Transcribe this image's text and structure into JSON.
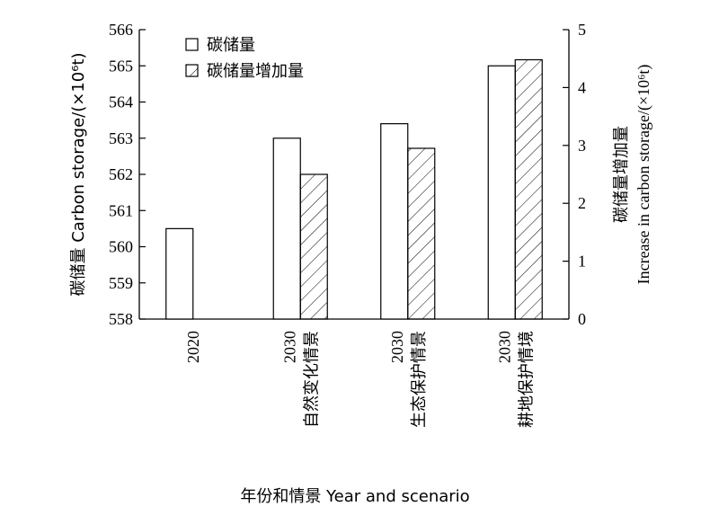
{
  "chart_data": {
    "type": "bar",
    "categories": [
      {
        "line1": "2020",
        "line2": ""
      },
      {
        "line1": "2030",
        "line2": "自然变化情景"
      },
      {
        "line1": "2030",
        "line2": "生态保护情景"
      },
      {
        "line1": "2030",
        "line2": "耕地保护情境"
      }
    ],
    "series": [
      {
        "name": "碳储量",
        "axis": "left",
        "pattern": "none",
        "values": [
          560.5,
          563.0,
          563.4,
          565.0
        ]
      },
      {
        "name": "碳储量增加量",
        "axis": "right",
        "pattern": "hatch",
        "values": [
          null,
          2.5,
          2.95,
          4.48
        ]
      }
    ],
    "ylabel_left": "碳储量 Carbon storage/(×10⁶t)",
    "ylabel_right_line1": "碳储量增加量",
    "ylabel_right_line2": "Increase in carbon storage/(×10⁶t)",
    "xlabel": "年份和情景 Year and scenario",
    "ylim_left": [
      558,
      566
    ],
    "yticks_left": [
      558,
      559,
      560,
      561,
      562,
      563,
      564,
      565,
      566
    ],
    "ylim_right": [
      0,
      5
    ],
    "yticks_right": [
      0,
      1,
      2,
      3,
      4,
      5
    ],
    "legend_position": "top-left",
    "grid": false
  }
}
